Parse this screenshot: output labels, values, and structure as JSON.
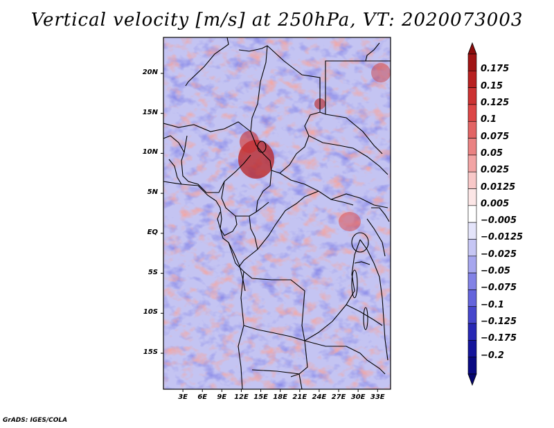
{
  "title": "Vertical velocity [m/s] at 250hPa, VT: 2020073003",
  "credit": "GrADS: IGES/COLA",
  "map": {
    "lon_range": [
      0,
      35
    ],
    "lat_range": [
      -19.5,
      24.5
    ],
    "lat_ticks": [
      "20N",
      "15N",
      "10N",
      "5N",
      "EQ",
      "5S",
      "10S",
      "15S"
    ],
    "lat_values": [
      20,
      15,
      10,
      5,
      0,
      -5,
      -10,
      -15
    ],
    "lon_ticks": [
      "3E",
      "6E",
      "9E",
      "12E",
      "15E",
      "18E",
      "21E",
      "24E",
      "27E",
      "30E",
      "33E"
    ],
    "lon_values": [
      3,
      6,
      9,
      12,
      15,
      18,
      21,
      24,
      27,
      30,
      33
    ],
    "field": "vertical velocity",
    "units": "m/s",
    "level": "250hPa",
    "valid_time": "2020073003"
  },
  "colorbar": {
    "labels": [
      "0.175",
      "0.15",
      "0.125",
      "0.1",
      "0.075",
      "0.05",
      "0.025",
      "0.0125",
      "0.005",
      "−0.005",
      "−0.0125",
      "−0.025",
      "−0.05",
      "−0.075",
      "−0.1",
      "−0.125",
      "−0.175",
      "−0.2"
    ],
    "colors": [
      "#a01414",
      "#b82020",
      "#cc3232",
      "#dc4646",
      "#e26464",
      "#ea8282",
      "#f2a4a4",
      "#f8c8c8",
      "#fce6e6",
      "#ffffff",
      "#e4e4fa",
      "#c6c6f4",
      "#a6a6ee",
      "#8282e6",
      "#6464dc",
      "#4646cc",
      "#2828b4",
      "#14149a",
      "#0a0a82"
    ],
    "top_color": "#8c0c0c",
    "bottom_color": "#06066e"
  }
}
